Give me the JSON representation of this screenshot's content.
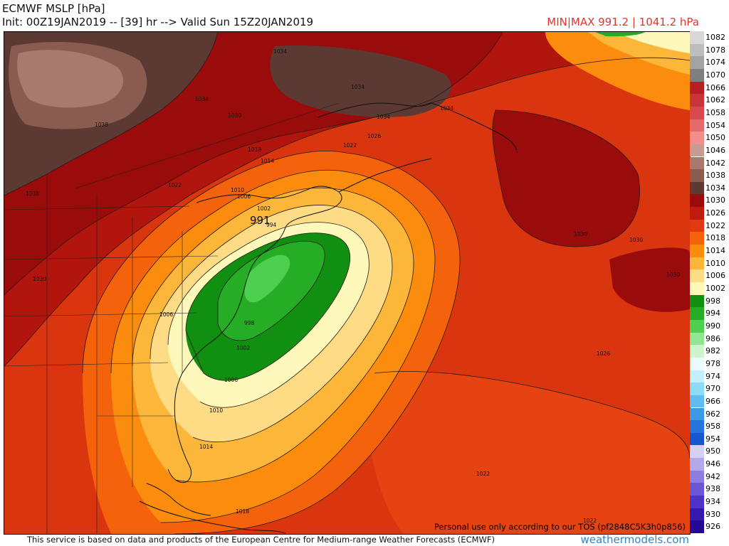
{
  "header": {
    "title": "ECMWF MSLP [hPa]",
    "init": "Init: 00Z19JAN2019 -- [39] hr --> Valid Sun 15Z20JAN2019",
    "minmax": "MIN|MAX 991.2 | 1041.2 hPa"
  },
  "map": {
    "tos_notice": "Personal use only according to our TOS (pf2848C5K3h0p856)",
    "low_center_label": "991",
    "isobar_labels": [
      "1034",
      "1034",
      "1034",
      "1034",
      "1038",
      "1038",
      "1030",
      "1030",
      "1030",
      "1030",
      "1034",
      "1030",
      "1026",
      "1022",
      "1018",
      "1014",
      "1010",
      "1006",
      "1002",
      "994",
      "998",
      "1002",
      "1006",
      "1006",
      "1010",
      "1014",
      "1018",
      "1022",
      "1026",
      "1022",
      "1022"
    ]
  },
  "legend": {
    "items": [
      {
        "label": "1082",
        "color": "#d8d8d8"
      },
      {
        "label": "1078",
        "color": "#bdbdbd"
      },
      {
        "label": "1074",
        "color": "#a3a3a3"
      },
      {
        "label": "1070",
        "color": "#7f7f7f"
      },
      {
        "label": "1066",
        "color": "#b81f24"
      },
      {
        "label": "1062",
        "color": "#c9353a"
      },
      {
        "label": "1058",
        "color": "#d9484d"
      },
      {
        "label": "1054",
        "color": "#e66a6a"
      },
      {
        "label": "1050",
        "color": "#f08f8b"
      },
      {
        "label": "1046",
        "color": "#c99a92"
      },
      {
        "label": "1042",
        "color": "#a7796f"
      },
      {
        "label": "1038",
        "color": "#8a5c50"
      },
      {
        "label": "1034",
        "color": "#5c3a33"
      },
      {
        "label": "1030",
        "color": "#9b0b0b"
      },
      {
        "label": "1026",
        "color": "#c11b0e"
      },
      {
        "label": "1022",
        "color": "#e13a10"
      },
      {
        "label": "1018",
        "color": "#f5620c"
      },
      {
        "label": "1014",
        "color": "#fb8c0e"
      },
      {
        "label": "1010",
        "color": "#fcb73a"
      },
      {
        "label": "1006",
        "color": "#fedc85"
      },
      {
        "label": "1002",
        "color": "#fff8bb"
      },
      {
        "label": "998",
        "color": "#108f10"
      },
      {
        "label": "994",
        "color": "#25ad25"
      },
      {
        "label": "990",
        "color": "#4fcf4f"
      },
      {
        "label": "986",
        "color": "#91e691"
      },
      {
        "label": "982",
        "color": "#cdf5cd"
      },
      {
        "label": "978",
        "color": "#eafcff"
      },
      {
        "label": "974",
        "color": "#c3f0ff"
      },
      {
        "label": "970",
        "color": "#8ddcf7"
      },
      {
        "label": "966",
        "color": "#5fbcef"
      },
      {
        "label": "962",
        "color": "#3b9ae6"
      },
      {
        "label": "958",
        "color": "#2175dc"
      },
      {
        "label": "954",
        "color": "#1457cf"
      },
      {
        "label": "950",
        "color": "#d6d0f3"
      },
      {
        "label": "946",
        "color": "#b3a8ec"
      },
      {
        "label": "942",
        "color": "#8d7de2"
      },
      {
        "label": "938",
        "color": "#6b56d6"
      },
      {
        "label": "934",
        "color": "#4d34c6"
      },
      {
        "label": "930",
        "color": "#3519b0"
      },
      {
        "label": "926",
        "color": "#230a96"
      }
    ]
  },
  "footer": {
    "notice": "This service is based on data and products of the European Centre for Medium-range Weather Forecasts (ECMWF)",
    "brand": "weathermodels.com"
  }
}
